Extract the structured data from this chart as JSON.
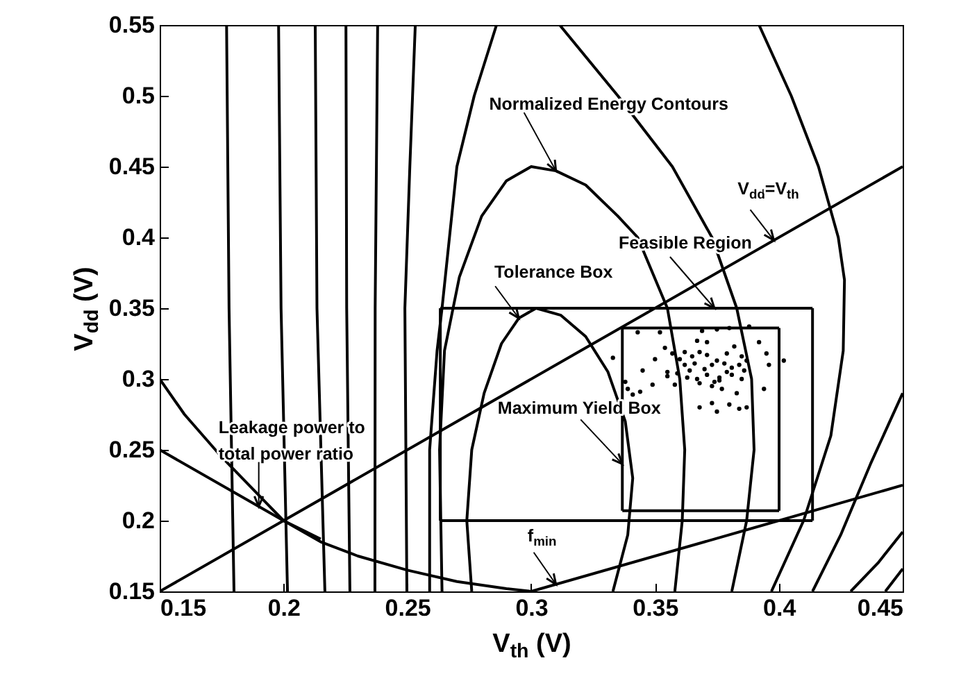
{
  "chart_data": {
    "type": "line",
    "xlabel": "V$_{th}$ (V)",
    "ylabel": "V$_{dd}$ (V)",
    "xlim": [
      0.15,
      0.45
    ],
    "xticks": [
      0.15,
      0.2,
      0.25,
      0.3,
      0.35,
      0.4,
      0.45
    ],
    "ylim": [
      0.15,
      0.55
    ],
    "yticks": [
      0.15,
      0.2,
      0.25,
      0.3,
      0.35,
      0.4,
      0.45,
      0.5,
      0.55
    ],
    "series": [
      {
        "color": "#000000",
        "x": [
          0.18,
          0.178,
          0.177
        ],
        "values": [
          0.15,
          0.35,
          0.55
        ]
      },
      {
        "color": "#000000",
        "x": [
          0.2016,
          0.199,
          0.198
        ],
        "values": [
          0.15,
          0.35,
          0.55
        ]
      },
      {
        "color": "#000000",
        "x": [
          0.2167,
          0.2135,
          0.2128
        ],
        "values": [
          0.15,
          0.35,
          0.55
        ]
      },
      {
        "color": "#000000",
        "x": [
          0.2268,
          0.2255,
          0.2252
        ],
        "values": [
          0.15,
          0.35,
          0.55
        ]
      },
      {
        "color": "#000000",
        "x": [
          0.2369,
          0.237,
          0.238
        ],
        "values": [
          0.15,
          0.35,
          0.55
        ]
      },
      {
        "color": "#000000",
        "x": [
          0.2498,
          0.249,
          0.251,
          0.2532
        ],
        "values": [
          0.15,
          0.35,
          0.45,
          0.55
        ]
      },
      {
        "color": "#000000",
        "x": [
          0.276,
          0.274,
          0.276,
          0.281,
          0.288,
          0.295,
          0.302,
          0.312,
          0.322,
          0.331,
          0.338,
          0.341,
          0.339,
          0.333
        ],
        "values": [
          0.15,
          0.2,
          0.25,
          0.29,
          0.325,
          0.343,
          0.35,
          0.345,
          0.33,
          0.305,
          0.27,
          0.23,
          0.19,
          0.15
        ]
      },
      {
        "color": "#000000",
        "x": [
          0.264,
          0.263,
          0.265,
          0.271,
          0.28,
          0.29,
          0.3,
          0.31,
          0.322,
          0.335,
          0.343,
          0.355,
          0.36,
          0.362,
          0.361,
          0.358
        ],
        "values": [
          0.15,
          0.25,
          0.32,
          0.372,
          0.415,
          0.44,
          0.45,
          0.447,
          0.437,
          0.415,
          0.4,
          0.35,
          0.3,
          0.25,
          0.2,
          0.15
        ]
      },
      {
        "color": "#000000",
        "x": [
          0.259,
          0.259,
          0.262,
          0.264,
          0.27,
          0.277,
          0.286
        ],
        "values": [
          0.15,
          0.25,
          0.32,
          0.35,
          0.45,
          0.5,
          0.55
        ]
      },
      {
        "color": "#000000",
        "x": [
          0.3115,
          0.335,
          0.357,
          0.373,
          0.383,
          0.389,
          0.39,
          0.387,
          0.381
        ],
        "values": [
          0.55,
          0.5,
          0.45,
          0.4,
          0.35,
          0.3,
          0.25,
          0.2,
          0.15
        ]
      },
      {
        "color": "#000000",
        "x": [
          0.392,
          0.405,
          0.416,
          0.424,
          0.4265,
          0.426,
          0.421,
          0.41,
          0.397
        ],
        "values": [
          0.55,
          0.5,
          0.45,
          0.4,
          0.37,
          0.32,
          0.26,
          0.2,
          0.15
        ]
      },
      {
        "color": "#000000",
        "x": [
          0.4136,
          0.425,
          0.437,
          0.45
        ],
        "values": [
          0.15,
          0.19,
          0.24,
          0.29
        ]
      },
      {
        "color": "#000000",
        "x": [
          0.429,
          0.44,
          0.45
        ],
        "values": [
          0.15,
          0.17,
          0.192
        ]
      },
      {
        "color": "#000000",
        "x": [
          0.443,
          0.45
        ],
        "values": [
          0.15,
          0.166
        ]
      },
      {
        "color": "#000000",
        "x": [
          0.15,
          0.45
        ],
        "values": [
          0.15,
          0.45
        ]
      },
      {
        "color": "#000000",
        "x": [
          0.15,
          0.16,
          0.175,
          0.19,
          0.2,
          0.215,
          0.23,
          0.25,
          0.27,
          0.29,
          0.3,
          0.45
        ],
        "values": [
          0.3,
          0.275,
          0.245,
          0.218,
          0.2,
          0.185,
          0.175,
          0.165,
          0.157,
          0.152,
          0.15,
          0.225
        ]
      },
      {
        "color": "#000000",
        "x": [
          0.15,
          0.2,
          0.215
        ],
        "values": [
          0.25,
          0.2,
          0.187
        ]
      },
      {
        "color": "#000000",
        "x": [
          0.2633,
          0.4136
        ],
        "values": [
          0.35,
          0.35
        ]
      },
      {
        "color": "#000000",
        "x": [
          0.2633,
          0.4136
        ],
        "values": [
          0.2,
          0.2
        ]
      },
      {
        "color": "#000000",
        "x": [
          0.2633,
          0.2633
        ],
        "values": [
          0.2,
          0.35
        ]
      },
      {
        "color": "#000000",
        "x": [
          0.4136,
          0.4136
        ],
        "values": [
          0.2,
          0.35
        ]
      },
      {
        "color": "#000000",
        "x": [
          0.3368,
          0.4001
        ],
        "values": [
          0.336,
          0.336
        ]
      },
      {
        "color": "#000000",
        "x": [
          0.3368,
          0.4001
        ],
        "values": [
          0.207,
          0.207
        ]
      },
      {
        "color": "#000000",
        "x": [
          0.3368,
          0.3368
        ],
        "values": [
          0.207,
          0.336
        ]
      },
      {
        "color": "#000000",
        "x": [
          0.4001,
          0.4001
        ],
        "values": [
          0.207,
          0.336
        ]
      },
      {
        "type": "scatter",
        "color": "#000000",
        "x": [
          0.343,
          0.352,
          0.369,
          0.375,
          0.38,
          0.388,
          0.367,
          0.371,
          0.392,
          0.333,
          0.354,
          0.357,
          0.362,
          0.365,
          0.368,
          0.371,
          0.379,
          0.382,
          0.385,
          0.387,
          0.395,
          0.402,
          0.35,
          0.362,
          0.364,
          0.366,
          0.373,
          0.375,
          0.378,
          0.381,
          0.384,
          0.386,
          0.396,
          0.345,
          0.355,
          0.359,
          0.363,
          0.367,
          0.371,
          0.374,
          0.376,
          0.379,
          0.381,
          0.385,
          0.394,
          0.338,
          0.349,
          0.358,
          0.368,
          0.373,
          0.376,
          0.377,
          0.383,
          0.341,
          0.344,
          0.368,
          0.373,
          0.375,
          0.38,
          0.384,
          0.387,
          0.339,
          0.355,
          0.36,
          0.37
        ],
        "values": [
          0.333,
          0.333,
          0.334,
          0.335,
          0.336,
          0.337,
          0.327,
          0.326,
          0.326,
          0.315,
          0.322,
          0.318,
          0.319,
          0.316,
          0.319,
          0.317,
          0.318,
          0.323,
          0.316,
          0.313,
          0.318,
          0.313,
          0.314,
          0.31,
          0.306,
          0.311,
          0.31,
          0.313,
          0.311,
          0.308,
          0.31,
          0.306,
          0.31,
          0.306,
          0.305,
          0.304,
          0.301,
          0.3,
          0.303,
          0.298,
          0.301,
          0.305,
          0.303,
          0.3,
          0.293,
          0.298,
          0.296,
          0.296,
          0.297,
          0.295,
          0.299,
          0.293,
          0.29,
          0.289,
          0.291,
          0.28,
          0.283,
          0.277,
          0.282,
          0.279,
          0.28,
          0.293,
          0.302,
          0.314,
          0.307
        ]
      }
    ],
    "annotations": [
      {
        "text": "Normalized Energy Contours",
        "x": 0.31,
        "y": 0.447
      },
      {
        "text": "V$_{dd}$=V$_{th}$",
        "x": 0.398,
        "y": 0.398
      },
      {
        "text": "Feasible Region",
        "x": 0.374,
        "y": 0.35
      },
      {
        "text": "Tolerance Box",
        "x": 0.295,
        "y": 0.343
      },
      {
        "text": "Maximum Yield Box",
        "x": 0.3368,
        "y": 0.24
      },
      {
        "text": "Leakage power to\ntotal power ratio",
        "x": 0.19,
        "y": 0.21
      },
      {
        "text": "f$_{min}$",
        "x": 0.31,
        "y": 0.155
      }
    ]
  }
}
